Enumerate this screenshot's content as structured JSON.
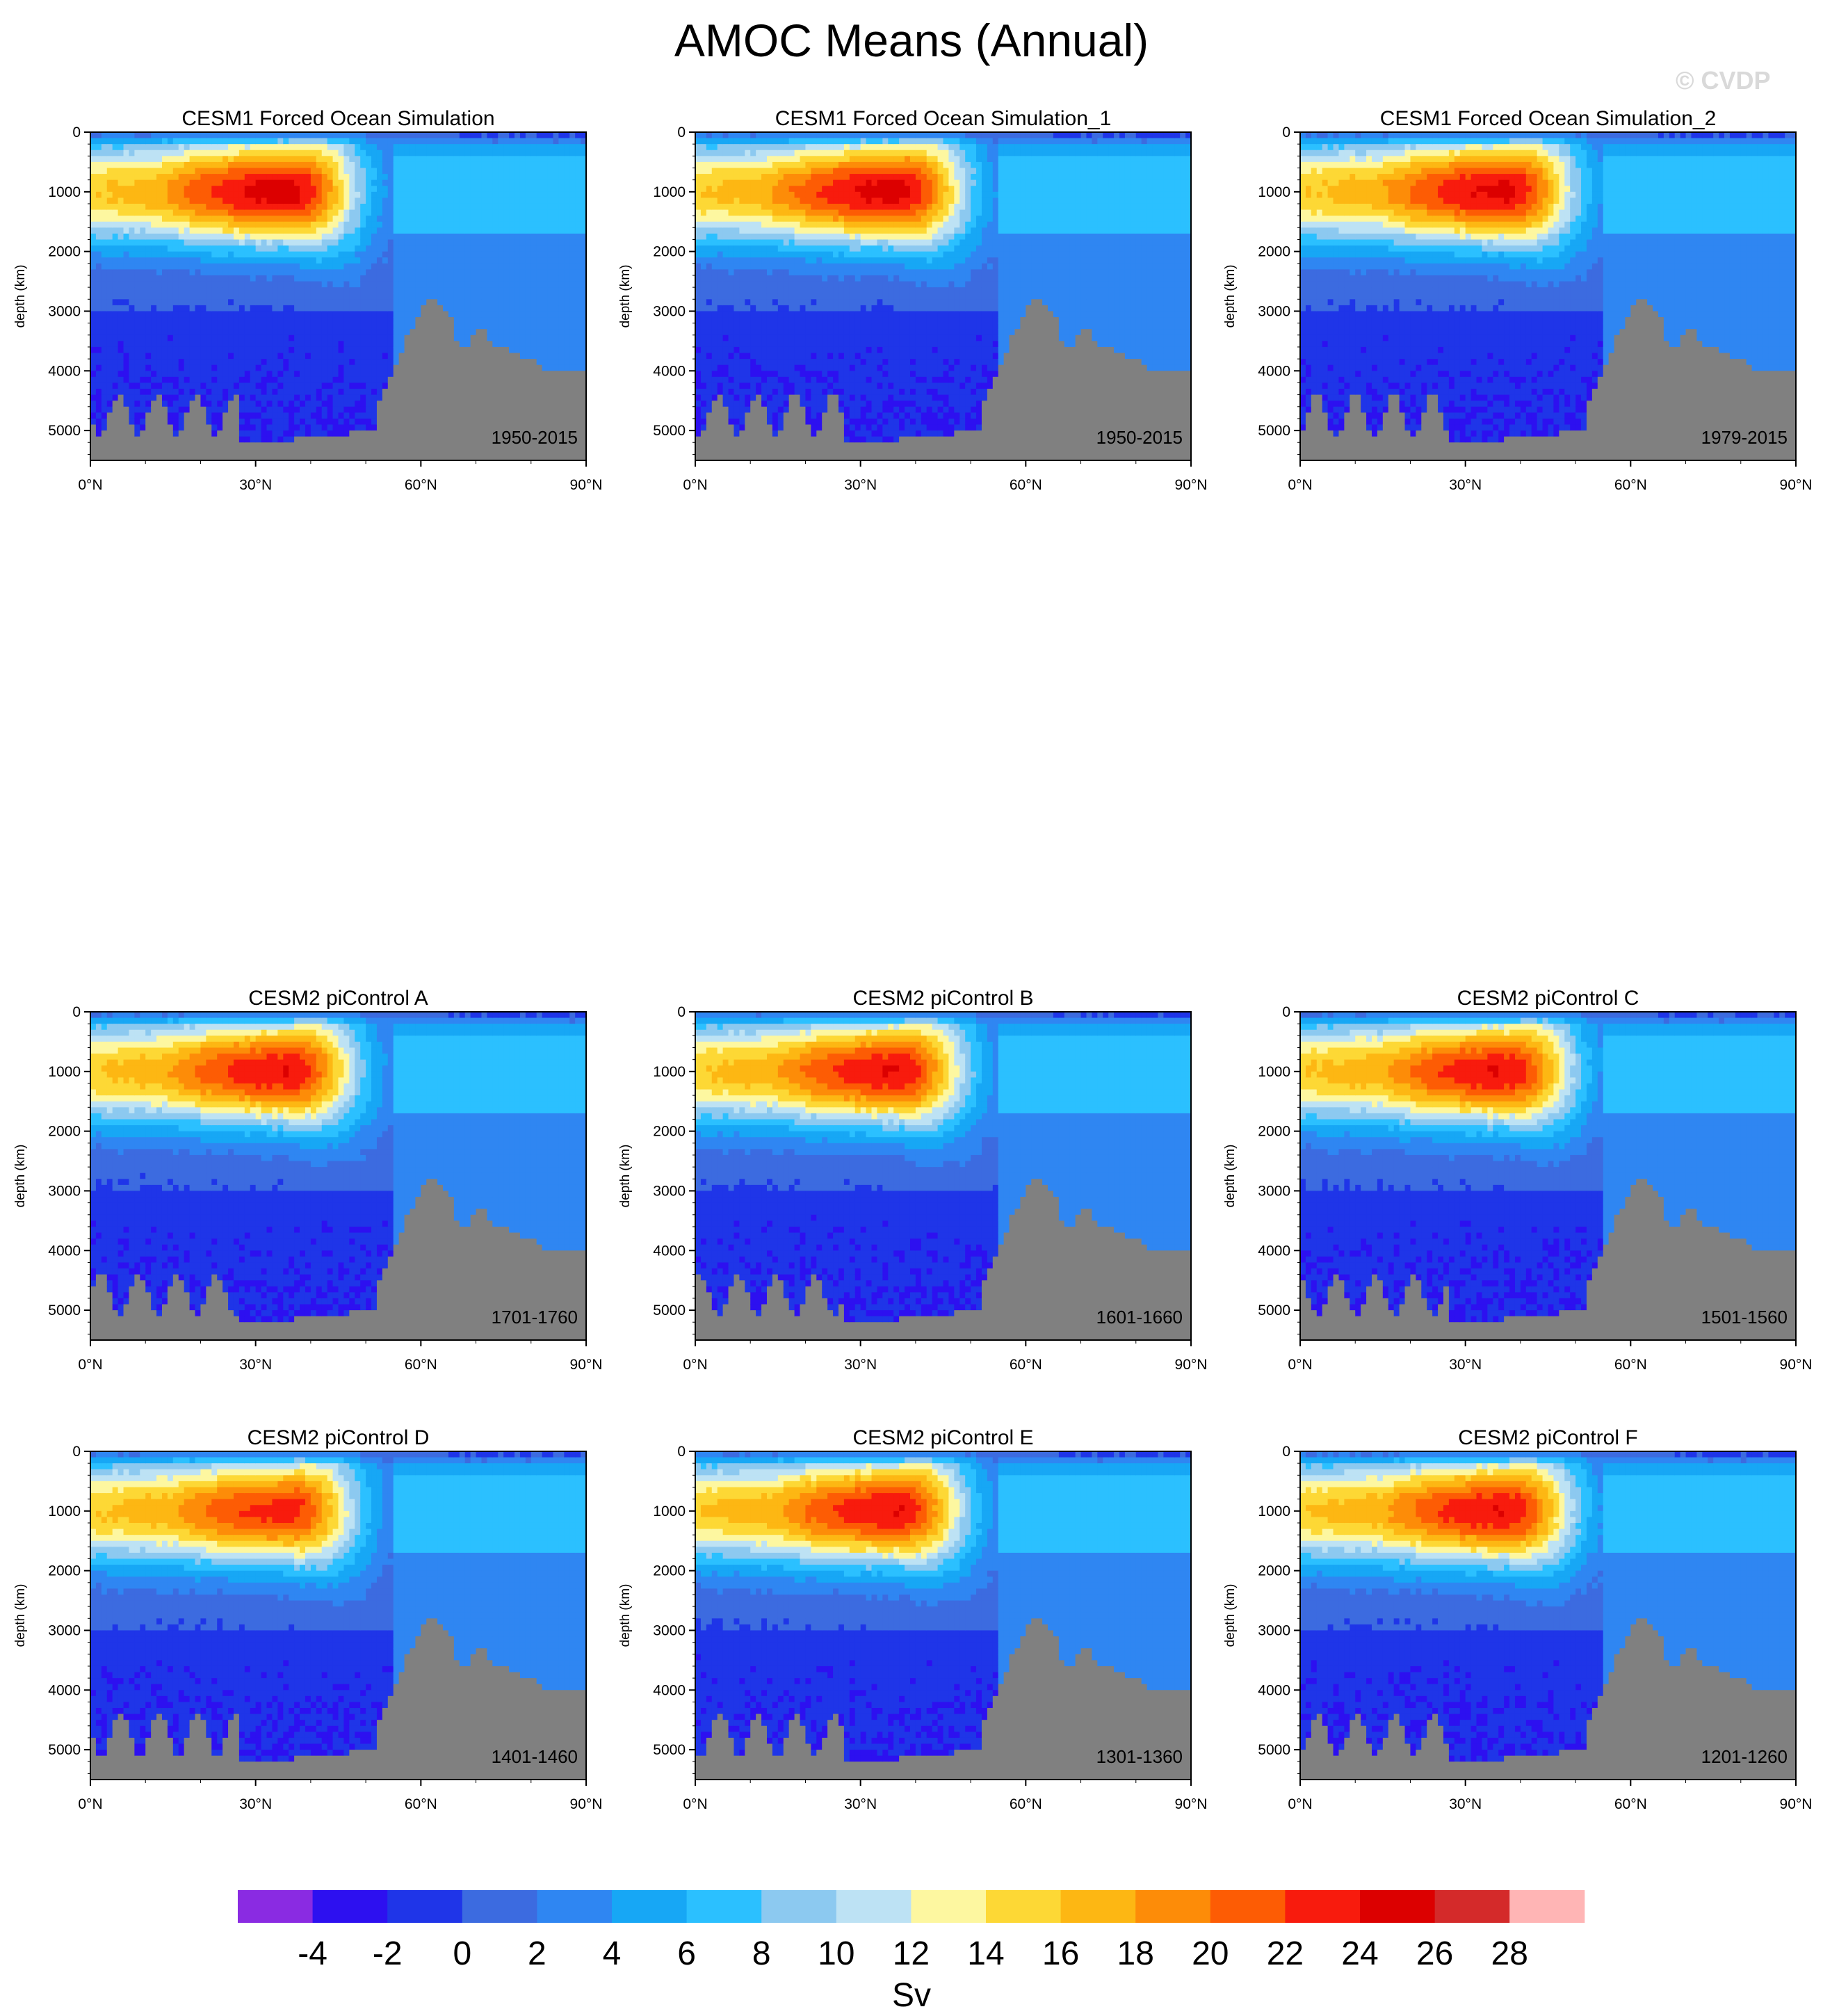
{
  "figure_title": "AMOC Means (Annual)",
  "watermark": "© CVDP",
  "chart_data": {
    "type": "heatmap",
    "x": {
      "ticks": [
        "0°N",
        "30°N",
        "60°N",
        "90°N"
      ],
      "range": [
        0,
        90
      ]
    },
    "y": {
      "label": "depth (km)",
      "ticks": [
        "0",
        "1000",
        "2000",
        "3000",
        "4000",
        "5000"
      ],
      "range": [
        0,
        5500
      ],
      "reversed": true
    },
    "panels": [
      {
        "title": "CESM1 Forced Ocean Simulation",
        "period": "1950-2015",
        "max_sv": 25
      },
      {
        "title": "CESM1 Forced Ocean Simulation_1",
        "period": "1950-2015",
        "max_sv": 25
      },
      {
        "title": "CESM1 Forced Ocean Simulation_2",
        "period": "1979-2015",
        "max_sv": 24.5
      },
      {
        "title": "CESM2 piControl A",
        "period": "1701-1760",
        "max_sv": 24
      },
      {
        "title": "CESM2 piControl B",
        "period": "1601-1660",
        "max_sv": 24
      },
      {
        "title": "CESM2 piControl C",
        "period": "1501-1560",
        "max_sv": 24
      },
      {
        "title": "CESM2 piControl D",
        "period": "1401-1460",
        "max_sv": 23
      },
      {
        "title": "CESM2 piControl E",
        "period": "1301-1360",
        "max_sv": 24
      },
      {
        "title": "CESM2 piControl F",
        "period": "1201-1260",
        "max_sv": 24
      }
    ],
    "colorbar": {
      "unit": "Sv",
      "labels": [
        "-4",
        "-2",
        "0",
        "2",
        "4",
        "6",
        "8",
        "10",
        "12",
        "14",
        "16",
        "18",
        "20",
        "22",
        "24",
        "26",
        "28"
      ],
      "levels": [
        -4,
        -2,
        0,
        2,
        4,
        6,
        8,
        10,
        12,
        14,
        16,
        18,
        20,
        22,
        24,
        26,
        28
      ],
      "colors": [
        "#8a2be2",
        "#2d10f0",
        "#1f35e8",
        "#3c6be0",
        "#2f86f2",
        "#17a7f5",
        "#2bc0ff",
        "#8cc9f0",
        "#bde2f4",
        "#fdf7a0",
        "#fdd835",
        "#fdb713",
        "#fd8c08",
        "#fd5c04",
        "#f81b0d",
        "#dc0000",
        "#d42a2a",
        "#ffb5b5"
      ]
    },
    "land_color": "#808080"
  }
}
